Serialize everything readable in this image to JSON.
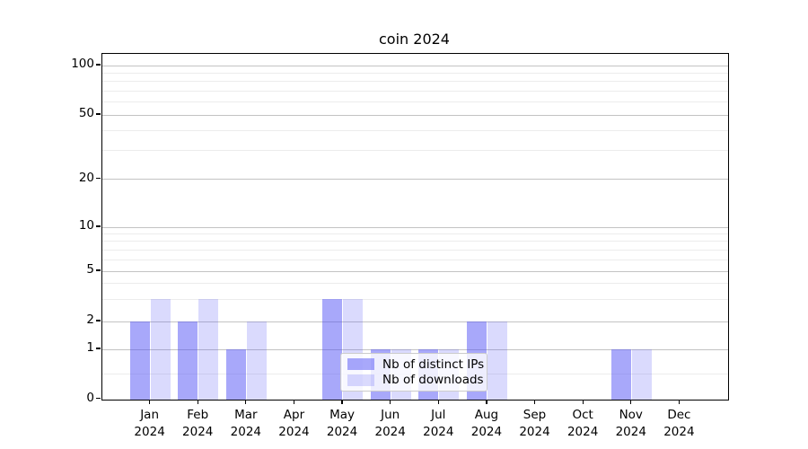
{
  "chart_data": {
    "type": "bar",
    "title": "coin 2024",
    "categories": [
      "Jan",
      "Feb",
      "Mar",
      "Apr",
      "May",
      "Jun",
      "Jul",
      "Aug",
      "Sep",
      "Oct",
      "Nov",
      "Dec"
    ],
    "x_tick_second_line": "2024",
    "series": [
      {
        "name": "Nb of distinct IPs",
        "color": "rgba(82,82,245,0.50)",
        "values": [
          2,
          2,
          1,
          0,
          3,
          1,
          1,
          2,
          0,
          0,
          1,
          0
        ]
      },
      {
        "name": "Nb of downloads",
        "color": "rgba(82,82,245,0.21)",
        "values": [
          3,
          3,
          2,
          0,
          3,
          1,
          1,
          2,
          0,
          0,
          1,
          0
        ]
      }
    ],
    "xlabel": "",
    "ylabel": "",
    "yscale": "symlog",
    "ylim": [
      0,
      120
    ],
    "y_ticks": [
      0,
      1,
      2,
      5,
      10,
      20,
      50,
      100
    ],
    "y_minor_gridlines": [
      0.5,
      3,
      4,
      6,
      7,
      8,
      9,
      30,
      40,
      60,
      70,
      80,
      90
    ],
    "grid": true,
    "legend_position": "lower center",
    "colors": {
      "background": "#ffffff",
      "spine": "#000000",
      "grid_major": "#c3c3c3",
      "grid_minor": "#ececec",
      "text": "#000000"
    }
  }
}
